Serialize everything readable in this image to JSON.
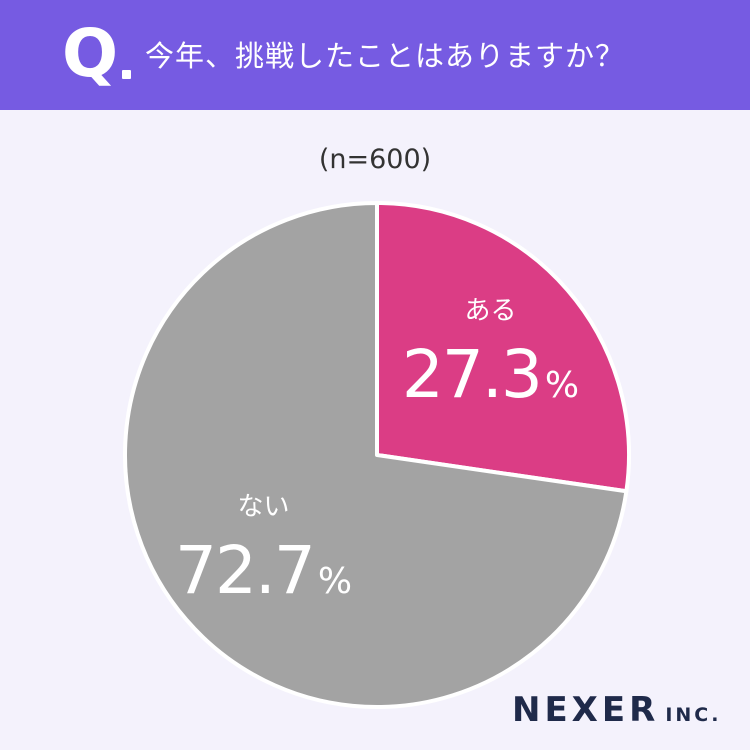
{
  "header": {
    "q_mark": "Q",
    "question": "今年、挑戦したことはありますか？",
    "background": "#765be2"
  },
  "sample": "(n=600)",
  "chart_data": {
    "type": "pie",
    "categories": [
      "ある",
      "ない"
    ],
    "values": [
      27.3,
      72.7
    ],
    "value_labels": [
      "27.3",
      "72.7"
    ],
    "unit": "%",
    "colors": [
      "#db3d85",
      "#a3a3a3"
    ],
    "start": "12 o'clock",
    "direction": "clockwise"
  },
  "brand": {
    "name": "NEXER",
    "suffix": "INC."
  }
}
